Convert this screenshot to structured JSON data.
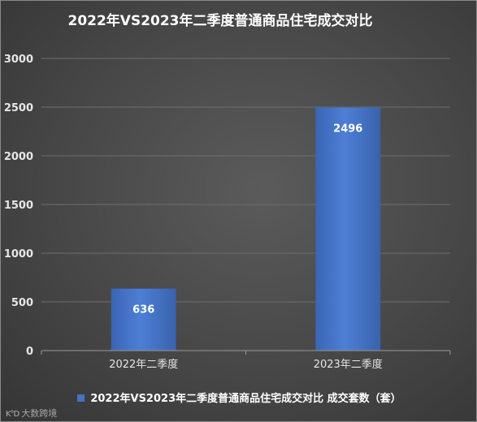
{
  "chart_data": {
    "type": "bar",
    "title": "2022年VS2023年二季度普通商品住宅成交对比",
    "categories": [
      "2022年二季度",
      "2023年二季度"
    ],
    "series": [
      {
        "name": "2022年VS2023年二季度普通商品住宅成交对比 成交套数（套）",
        "values": [
          636,
          2496
        ]
      }
    ],
    "data_labels": [
      "636",
      "2496"
    ],
    "ylim": [
      0,
      3000
    ],
    "yticks": [
      0,
      500,
      1000,
      1500,
      2000,
      2500,
      3000
    ],
    "grid": true,
    "legend_position": "bottom",
    "colors": {
      "bar": "#4472c4",
      "bar_edge": "#3a62ac",
      "grid": "#6e6e6e",
      "text": "#ffffff",
      "axis_text": "#e6e6e6"
    }
  },
  "watermark": {
    "text": "大数跨境",
    "logo_text": "K°D"
  }
}
